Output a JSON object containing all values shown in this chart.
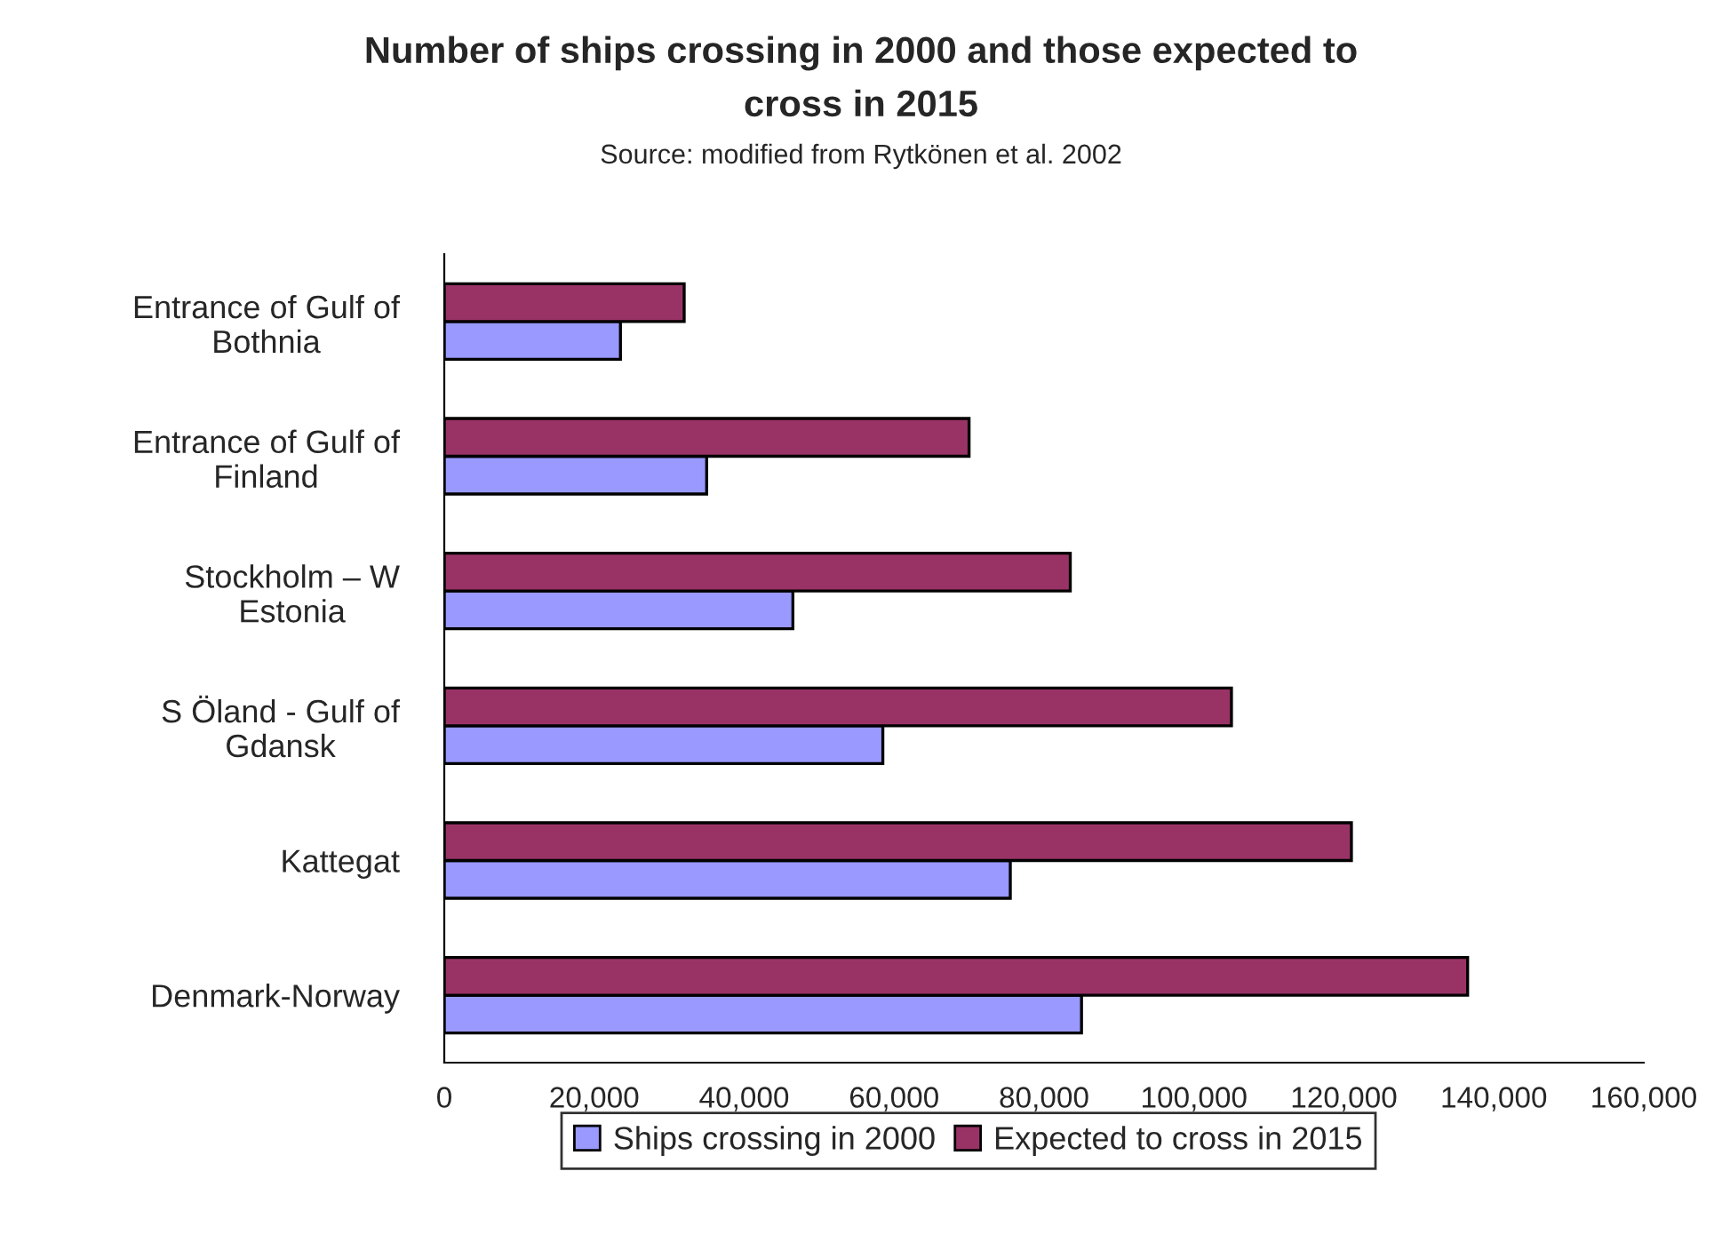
{
  "chart_data": {
    "type": "bar",
    "orientation": "horizontal",
    "title": "Number of ships crossing in 2000 and those expected to\ncross in 2015",
    "annotations": [
      "Source: modified from Rytkönen et al. 2002"
    ],
    "categories": [
      "Entrance of Gulf of\nBothnia",
      "Entrance of Gulf of\nFinland",
      "Stockholm – W\nEstonia",
      "S Öland - Gulf of\nGdansk",
      "Kattegat",
      "Denmark-Norway"
    ],
    "series": [
      {
        "name": "Ships crossing in 2000",
        "color": "#9999ff",
        "values": [
          23500,
          35000,
          46500,
          58500,
          75500,
          85000
        ]
      },
      {
        "name": "Expected to cross in 2015",
        "color": "#993366",
        "values": [
          32000,
          70000,
          83500,
          105000,
          121000,
          136500
        ]
      }
    ],
    "xlim": [
      0,
      160000
    ],
    "xticks": [
      0,
      {
        "value": 20000,
        "label": "20,000"
      },
      {
        "value": 40000,
        "label": "40,000"
      },
      {
        "value": 60000,
        "label": "60,000"
      },
      {
        "value": 80000,
        "label": "80,000"
      },
      {
        "value": 100000,
        "label": "100,000"
      },
      {
        "value": 120000,
        "label": "120,000"
      },
      {
        "value": 140000,
        "label": "140,000"
      },
      {
        "value": 160000,
        "label": "160,000"
      }
    ],
    "grid": false,
    "legend": "bottom"
  }
}
